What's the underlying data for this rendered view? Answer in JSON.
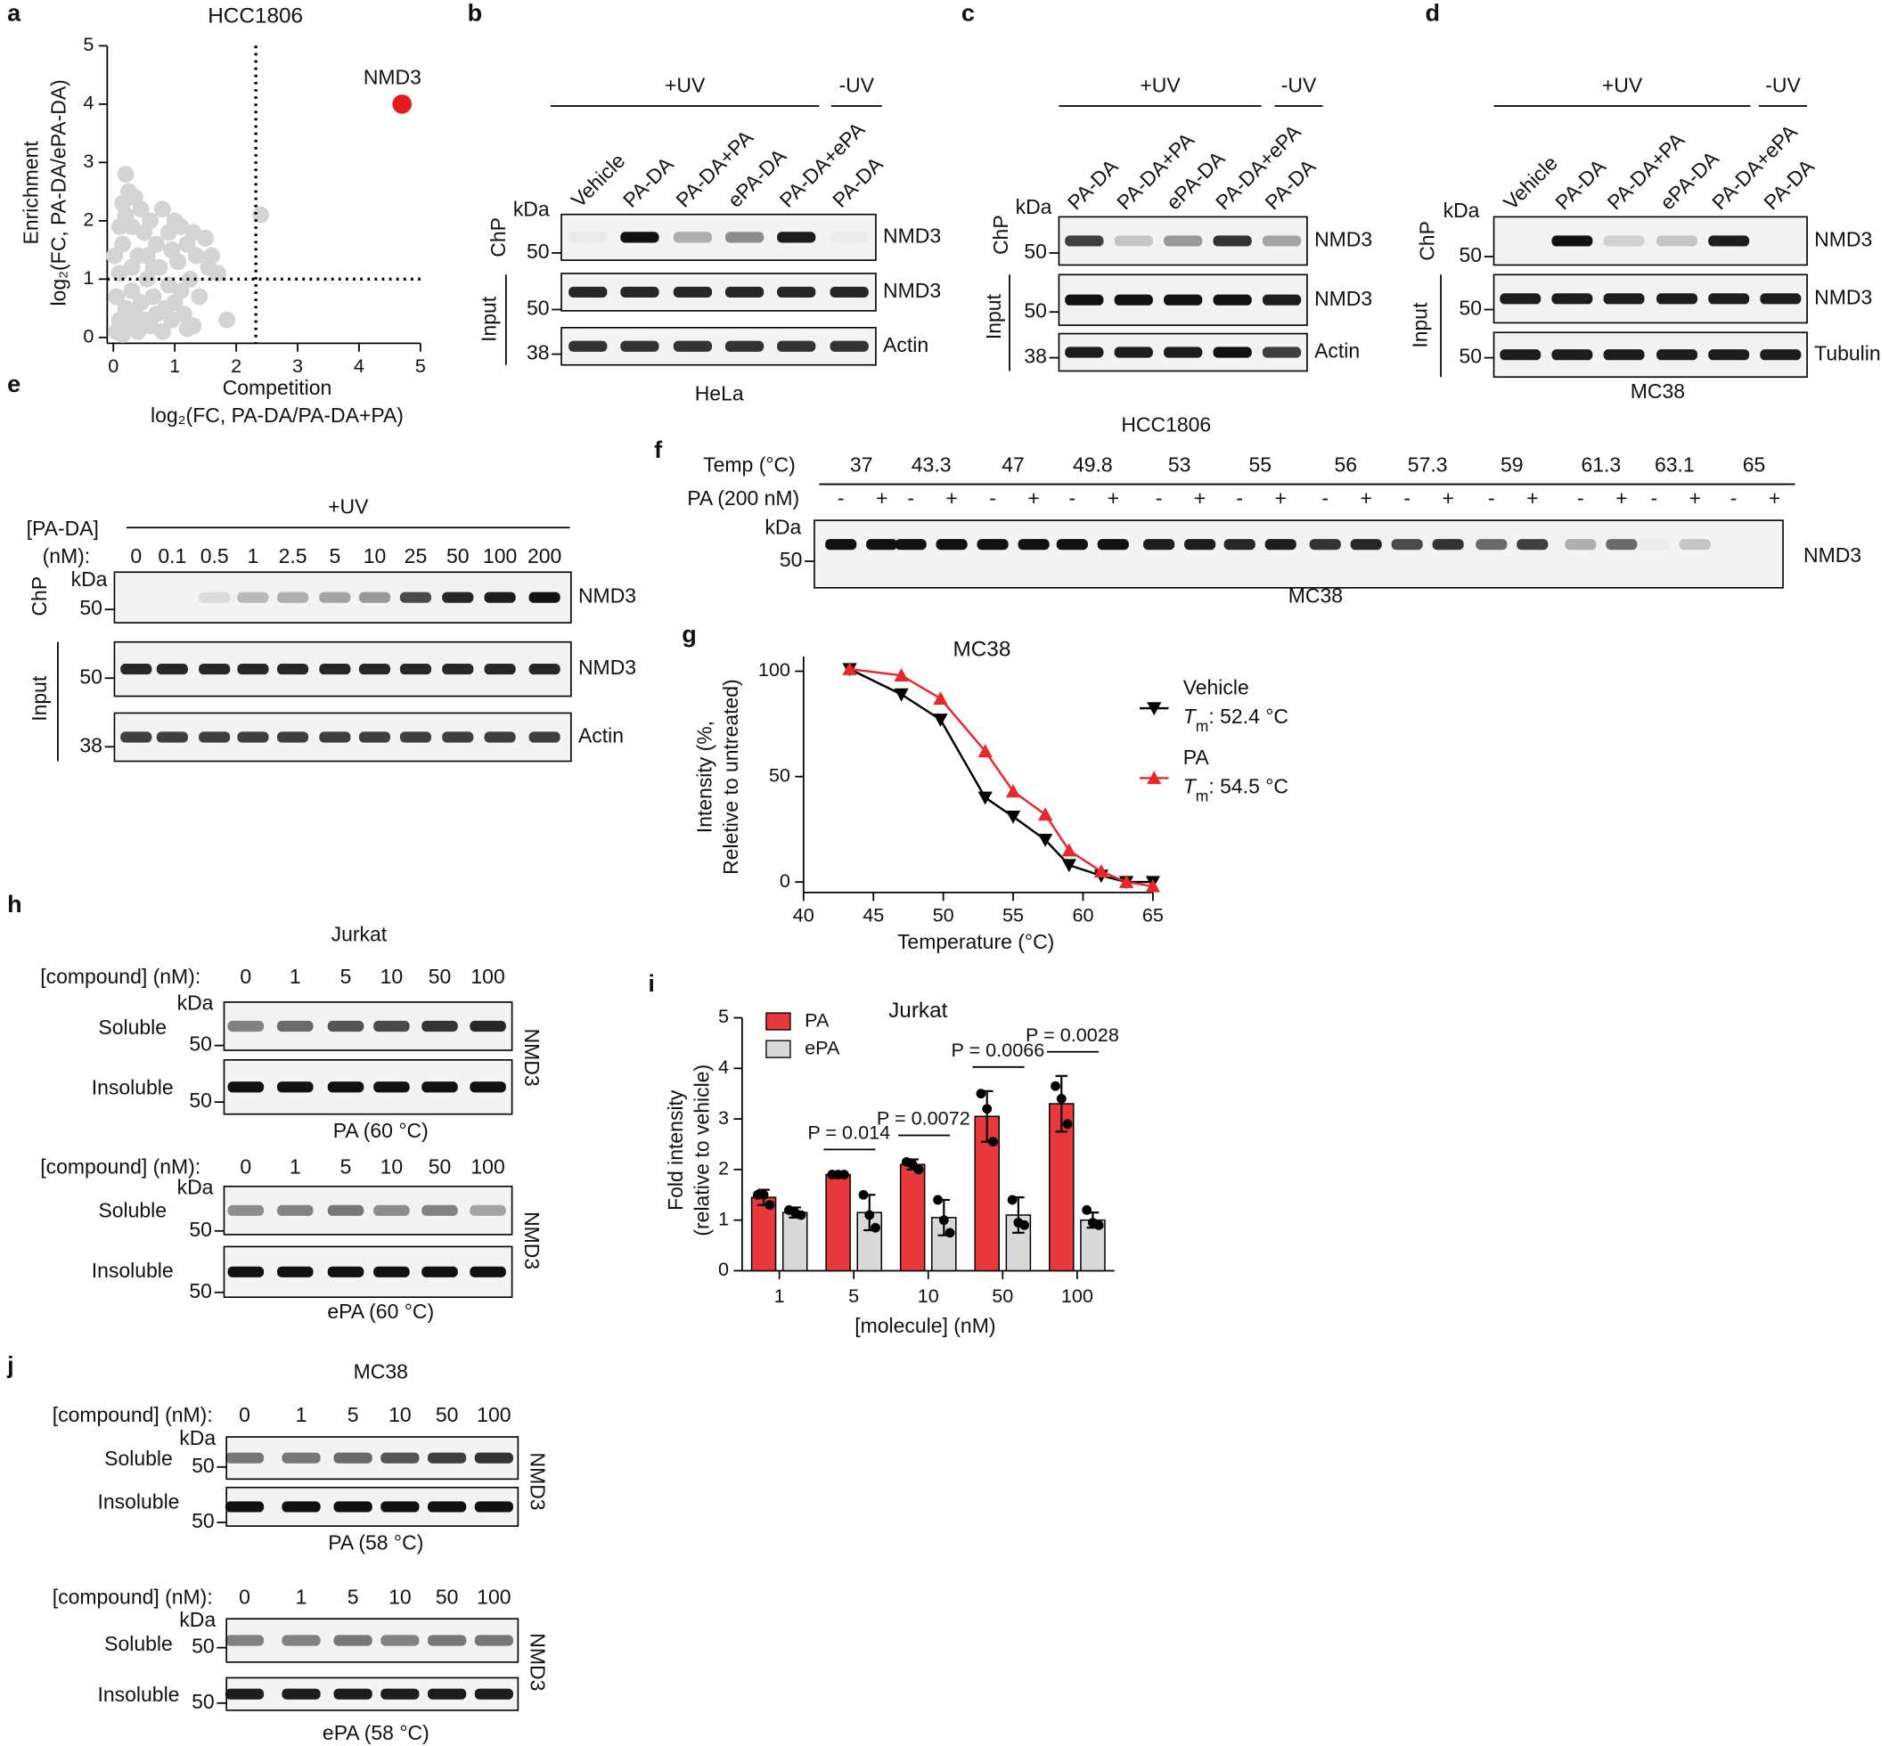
{
  "chart_data": [
    {
      "panel_label": "a",
      "type": "scatter",
      "title": "HCC1806",
      "x_label": [
        "Competition",
        "log₂(FC, PA-DA/PA-DA+PA)"
      ],
      "y_label": [
        "Enrichment",
        "log₂(FC, PA-DA/ePA-DA)"
      ],
      "xlim": [
        -0.1,
        5
      ],
      "ylim": [
        -0.1,
        5
      ],
      "xticks": [
        0,
        1,
        2,
        3,
        4,
        5
      ],
      "yticks": [
        0,
        1,
        2,
        3,
        4,
        5
      ],
      "threshold_x": 2.32,
      "threshold_y": 1,
      "series": [
        {
          "color": "#d4d4d4",
          "x": [
            0.05,
            0.1,
            0.15,
            0.2,
            0.25,
            0.3,
            0.35,
            0.4,
            0.45,
            0.5,
            0.55,
            0.6,
            0.65,
            0.7,
            0.75,
            0.8,
            0.85,
            0.9,
            0.95,
            1.0,
            1.05,
            1.1,
            1.15,
            1.2,
            1.25,
            1.3,
            1.35,
            1.4,
            1.5,
            1.55,
            1.6,
            1.7,
            0.1,
            0.15,
            0.2,
            0.3,
            0.35,
            0.2,
            0.25,
            0.4,
            0.5,
            0.6,
            0.7,
            0.8,
            0.9,
            1.0,
            1.1,
            0.45,
            0.05,
            0.1,
            1.2,
            1.85,
            2.4,
            0.55,
            0.65,
            0.3,
            1.3,
            0.95,
            0.15,
            0.02
          ],
          "values": [
            0.1,
            0.3,
            0.05,
            0.5,
            0.2,
            0.8,
            0.4,
            0.1,
            0.6,
            0.3,
            1.0,
            0.2,
            0.7,
            0.4,
            1.2,
            0.1,
            0.5,
            0.9,
            0.3,
            0.6,
            1.3,
            0.8,
            0.4,
            1.6,
            1.0,
            0.2,
            1.4,
            0.7,
            1.7,
            1.2,
            1.4,
            1.1,
            1.1,
            1.6,
            2.1,
            1.9,
            2.4,
            2.8,
            2.5,
            1.4,
            1.8,
            2.0,
            1.6,
            2.2,
            1.8,
            2.0,
            1.9,
            2.2,
            0.7,
            1.9,
            0.15,
            0.3,
            2.1,
            1.4,
            1.2,
            1.2,
            1.8,
            1.5,
            2.3,
            1.4
          ]
        },
        {
          "color": "#e41a1c",
          "x": [
            4.7
          ],
          "values": [
            4.0
          ],
          "point_labels": [
            "NMD3"
          ]
        }
      ]
    },
    {
      "panel_label": "g",
      "type": "line",
      "title": "MC38",
      "x_label": "Temperature (°C)",
      "y_label": [
        "Intensity (%,",
        "Reletive to untreated)"
      ],
      "xlim": [
        40,
        65
      ],
      "ylim": [
        -5,
        107
      ],
      "xticks": [
        40,
        45,
        50,
        55,
        60,
        65
      ],
      "yticks": [
        0,
        50,
        100
      ],
      "tm_label": {
        "symbol": "T",
        "subscript": "m",
        "separator": ": "
      },
      "x": [
        43.3,
        47,
        49.8,
        53,
        55,
        57.3,
        59,
        61.3,
        63.1,
        65
      ],
      "series": [
        {
          "name": "Vehicle",
          "color": "#000000",
          "marker": "down",
          "tm": "52.4 °C",
          "values": [
            101,
            89,
            77,
            40,
            31,
            20,
            8,
            3,
            0,
            0
          ]
        },
        {
          "name": "PA",
          "color": "#e8262b",
          "marker": "up",
          "tm": "54.5 °C",
          "values": [
            101,
            98,
            87,
            62,
            43,
            32,
            15,
            5,
            0,
            -2
          ]
        }
      ]
    },
    {
      "panel_label": "i",
      "type": "bar",
      "title": "Jurkat",
      "x_label": "[molecule] (nM)",
      "y_label": [
        "Fold intensity",
        "(relative to vehicle)"
      ],
      "categories": [
        "1",
        "5",
        "10",
        "50",
        "100"
      ],
      "ylim": [
        0,
        5
      ],
      "yticks": [
        0,
        1,
        2,
        3,
        4,
        5
      ],
      "p_values": [
        null,
        "P = 0.014",
        "P = 0.0072",
        "P = 0.0066",
        "P = 0.0028"
      ],
      "series": [
        {
          "name": "PA",
          "color": "#e8383d",
          "values": [
            1.45,
            1.9,
            2.1,
            3.05,
            3.3
          ],
          "errors": [
            0.15,
            0.02,
            0.1,
            0.5,
            0.55
          ],
          "points": [
            [
              1.5,
              1.5,
              1.3
            ],
            [
              1.9,
              1.9,
              1.9
            ],
            [
              2.15,
              2.1,
              2.0
            ],
            [
              3.5,
              3.2,
              2.55
            ],
            [
              3.65,
              3.4,
              2.9
            ]
          ]
        },
        {
          "name": "ePA",
          "color": "#d9d9d9",
          "values": [
            1.15,
            1.15,
            1.05,
            1.1,
            1.0
          ],
          "errors": [
            0.1,
            0.35,
            0.35,
            0.35,
            0.15
          ],
          "points": [
            [
              1.2,
              1.15,
              1.1
            ],
            [
              1.5,
              1.1,
              0.85
            ],
            [
              1.4,
              1.0,
              0.75
            ],
            [
              1.4,
              0.95,
              0.9
            ],
            [
              1.2,
              0.95,
              0.9
            ]
          ]
        }
      ]
    }
  ],
  "blots": [
    {
      "panel_label": "b",
      "groups": [
        "+UV",
        "-UV"
      ],
      "lanes": [
        "Vehicle",
        "PA-DA",
        "PA-DA+PA",
        "ePA-DA",
        "PA-DA+ePA",
        "PA-DA"
      ],
      "kda": "kDa",
      "sections": [
        "ChP",
        "Input"
      ],
      "rows": [
        {
          "marker": 50,
          "target": "NMD3"
        },
        {
          "marker": 50,
          "target": "NMD3"
        },
        {
          "marker": 38,
          "target": "Actin"
        }
      ],
      "caption": "HeLa"
    },
    {
      "panel_label": "c",
      "groups": [
        "+UV",
        "-UV"
      ],
      "lanes": [
        "PA-DA",
        "PA-DA+PA",
        "ePA-DA",
        "PA-DA+ePA",
        "PA-DA"
      ],
      "kda": "kDa",
      "sections": [
        "ChP",
        "Input"
      ],
      "rows": [
        {
          "marker": 50,
          "target": "NMD3"
        },
        {
          "marker": 50,
          "target": "NMD3"
        },
        {
          "marker": 38,
          "target": "Actin"
        }
      ],
      "caption": "HCC1806"
    },
    {
      "panel_label": "d",
      "groups": [
        "+UV",
        "-UV"
      ],
      "lanes": [
        "Vehicle",
        "PA-DA",
        "PA-DA+PA",
        "ePA-DA",
        "PA-DA+ePA",
        "PA-DA"
      ],
      "kda": "kDa",
      "sections": [
        "ChP",
        "Input"
      ],
      "rows": [
        {
          "marker": 50,
          "target": "NMD3"
        },
        {
          "marker": 50,
          "target": "NMD3"
        },
        {
          "marker": 50,
          "target": "Tubulin"
        }
      ],
      "caption": "MC38"
    },
    {
      "panel_label": "e",
      "groups": [
        "+UV"
      ],
      "lanes_title": [
        "[PA-DA]",
        "(nM):"
      ],
      "lanes": [
        0,
        0.1,
        0.5,
        1,
        2.5,
        5,
        10,
        25,
        50,
        100,
        200
      ],
      "kda": "kDa",
      "sections": [
        "ChP",
        "Input"
      ],
      "rows": [
        {
          "marker": 50,
          "target": "NMD3"
        },
        {
          "marker": 50,
          "target": "NMD3"
        },
        {
          "marker": 38,
          "target": "Actin"
        }
      ]
    },
    {
      "panel_label": "f",
      "header_label": "Temp (°C)",
      "lanes": [
        37,
        43.3,
        47,
        49.8,
        53,
        55,
        56,
        57.3,
        59,
        61.3,
        63.1,
        65
      ],
      "treatment_label": "PA (200 nM)",
      "treatment_levels": [
        "-",
        "+"
      ],
      "kda": "kDa",
      "rows": [
        {
          "marker": 50,
          "target": "NMD3"
        }
      ],
      "caption": "MC38"
    },
    {
      "panel_label": "h",
      "title": "Jurkat",
      "subpanels": [
        {
          "lanes_title": "[compound] (nM):",
          "lanes": [
            0,
            1,
            5,
            10,
            50,
            100
          ],
          "kda": "kDa",
          "rows": [
            {
              "label": "Soluble",
              "marker": 50
            },
            {
              "label": "Insoluble",
              "marker": 50
            }
          ],
          "target": "NMD3",
          "caption": "PA (60 °C)"
        },
        {
          "lanes_title": "[compound] (nM):",
          "lanes": [
            0,
            1,
            5,
            10,
            50,
            100
          ],
          "kda": "kDa",
          "rows": [
            {
              "label": "Soluble",
              "marker": 50
            },
            {
              "label": "Insoluble",
              "marker": 50
            }
          ],
          "target": "NMD3",
          "caption": "ePA (60 °C)"
        }
      ]
    },
    {
      "panel_label": "j",
      "title": "MC38",
      "subpanels": [
        {
          "lanes_title": "[compound] (nM):",
          "lanes": [
            0,
            1,
            5,
            10,
            50,
            100
          ],
          "kda": "kDa",
          "rows": [
            {
              "label": "Soluble",
              "marker": 50
            },
            {
              "label": "Insoluble",
              "marker": 50
            }
          ],
          "target": "NMD3",
          "caption": "PA (58 °C)"
        },
        {
          "lanes_title": "[compound] (nM):",
          "lanes": [
            0,
            1,
            5,
            10,
            50,
            100
          ],
          "kda": "kDa",
          "rows": [
            {
              "label": "Soluble",
              "marker": 50
            },
            {
              "label": "Insoluble",
              "marker": 50
            }
          ],
          "target": "NMD3",
          "caption": "ePA (58 °C)"
        }
      ]
    }
  ]
}
